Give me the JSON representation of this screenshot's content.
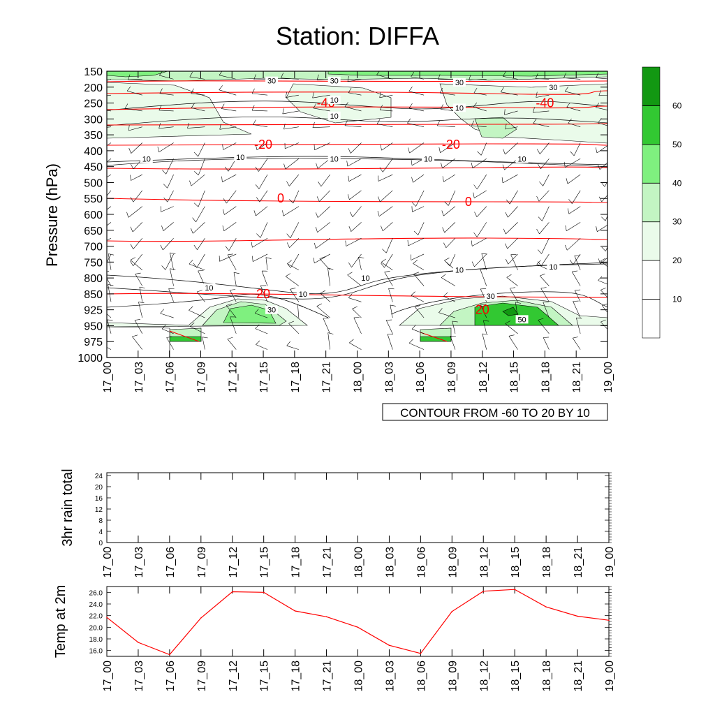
{
  "page": {
    "title": "Station: DIFFA"
  },
  "time_labels": [
    "17_00",
    "17_03",
    "17_06",
    "17_09",
    "17_12",
    "17_15",
    "17_18",
    "17_21",
    "18_00",
    "18_03",
    "18_06",
    "18_09",
    "18_12",
    "18_15",
    "18_18",
    "18_21",
    "19_00"
  ],
  "colors": {
    "temperature_contour": "#ff0000",
    "humidity_line": "#000000",
    "wind_barb": "#000000",
    "fill_levels": [
      "#ffffff",
      "#ffffff",
      "#eafbea",
      "#c3f5c3",
      "#7ff07f",
      "#32c832",
      "#129812"
    ]
  },
  "chart_data": [
    {
      "type": "heatmap",
      "title": "Station: DIFFA",
      "ylabel": "Pressure (hPa)",
      "y_ticks": [
        150,
        200,
        250,
        300,
        350,
        400,
        450,
        500,
        550,
        600,
        650,
        700,
        750,
        800,
        850,
        925,
        950,
        975,
        1000
      ],
      "x_categories_ref": "time_labels",
      "info_label": "CONTOUR FROM -60 TO 20 BY 10",
      "colorbar": {
        "labels": [
          "10",
          "20",
          "30",
          "40",
          "50",
          "60"
        ],
        "fill_colors": [
          "#ffffff",
          "#ffffff",
          "#eafbea",
          "#c3f5c3",
          "#7ff07f",
          "#32c832",
          "#129812"
        ]
      },
      "temperature_contour_labels": [
        {
          "text": "-40",
          "time": "17_21",
          "pressure": 250
        },
        {
          "text": "-40",
          "time": "18_18",
          "pressure": 250
        },
        {
          "text": "-20",
          "time": "17_15",
          "pressure": 380
        },
        {
          "text": "-20",
          "time": "18_09",
          "pressure": 380
        },
        {
          "text": "0",
          "time": "17_15",
          "pressure": 550
        },
        {
          "text": "0",
          "time": "18_09",
          "pressure": 560
        },
        {
          "text": "20",
          "time": "17_15",
          "pressure": 850
        },
        {
          "text": "20",
          "time": "18_12",
          "pressure": 925
        }
      ],
      "humidity_contour_labels": [
        {
          "text": "30",
          "time": "17_15",
          "pressure": 180
        },
        {
          "text": "30",
          "time": "17_21",
          "pressure": 180
        },
        {
          "text": "30",
          "time": "18_09",
          "pressure": 185
        },
        {
          "text": "30",
          "time": "18_18",
          "pressure": 200
        },
        {
          "text": "10",
          "time": "17_21",
          "pressure": 240
        },
        {
          "text": "10",
          "time": "17_21",
          "pressure": 290
        },
        {
          "text": "10",
          "time": "18_09",
          "pressure": 265
        },
        {
          "text": "10",
          "time": "17_03",
          "pressure": 425
        },
        {
          "text": "10",
          "time": "17_12",
          "pressure": 420
        },
        {
          "text": "10",
          "time": "17_21",
          "pressure": 425
        },
        {
          "text": "10",
          "time": "18_06",
          "pressure": 425
        },
        {
          "text": "10",
          "time": "18_15",
          "pressure": 425
        },
        {
          "text": "10",
          "time": "18_09",
          "pressure": 775
        },
        {
          "text": "10",
          "time": "18_18",
          "pressure": 765
        },
        {
          "text": "10",
          "time": "18_00",
          "pressure": 800
        },
        {
          "text": "10",
          "time": "17_09",
          "pressure": 830
        },
        {
          "text": "10",
          "time": "17_18",
          "pressure": 850
        },
        {
          "text": "30",
          "time": "17_15",
          "pressure": 925
        },
        {
          "text": "30",
          "time": "18_12",
          "pressure": 860
        },
        {
          "text": "50",
          "time": "18_15",
          "pressure": 940
        }
      ]
    },
    {
      "type": "line",
      "ylabel": "3hr rain total",
      "x_categories_ref": "time_labels",
      "y_ticks": [
        0,
        4,
        8,
        12,
        16,
        20,
        24
      ],
      "ylim": [
        0,
        25
      ],
      "values": []
    },
    {
      "type": "line",
      "ylabel": "Temp at 2m",
      "x_categories_ref": "time_labels",
      "y_ticks": [
        "16.0",
        "18.0",
        "20.0",
        "22.0",
        "24.0",
        "26.0"
      ],
      "ylim": [
        15.0,
        27.0
      ],
      "values": [
        21.7,
        17.4,
        15.3,
        21.6,
        26.1,
        26.0,
        22.8,
        21.8,
        20.0,
        16.9,
        15.5,
        22.7,
        26.2,
        26.5,
        23.5,
        21.9,
        21.2
      ],
      "color": "#ff0000"
    }
  ]
}
